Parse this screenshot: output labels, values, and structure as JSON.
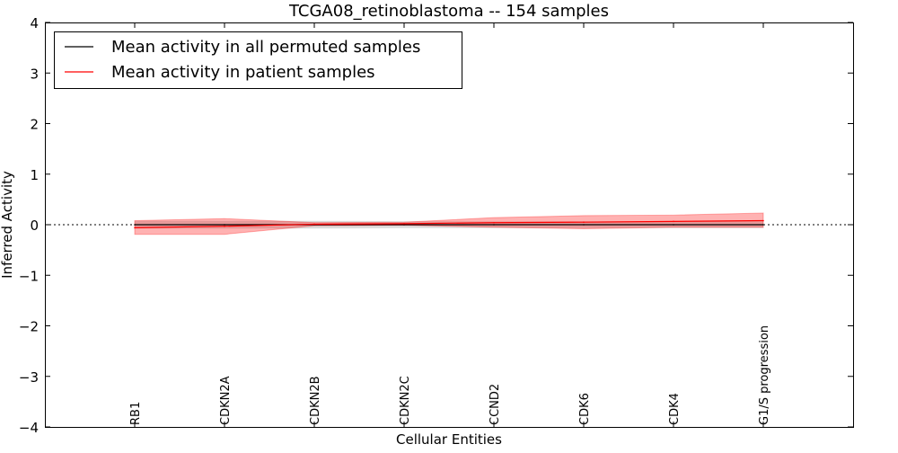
{
  "chart_data": {
    "type": "line",
    "title": "TCGA08_retinoblastoma -- 154 samples",
    "xlabel": "Cellular Entities",
    "ylabel": "Inferred Activity",
    "ylim": [
      -4,
      4
    ],
    "xlim": [
      0,
      9
    ],
    "yticks": [
      4,
      3,
      2,
      1,
      0,
      -1,
      -2,
      -3,
      -4
    ],
    "ytick_labels": [
      "4",
      "3",
      "2",
      "1",
      "0",
      "−1",
      "−2",
      "−3",
      "−4"
    ],
    "categories": [
      "RB1",
      "CDKN2A",
      "CDKN2B",
      "CDKN2C",
      "CCND2",
      "CDK6",
      "CDK4",
      "G1/S progression"
    ],
    "grid": false,
    "legend_position": "top-left",
    "series": [
      {
        "name": "Mean activity in all permuted samples",
        "color": "#000000",
        "values": [
          0,
          0,
          0,
          0,
          0,
          0,
          0,
          0
        ],
        "band_upper": [
          0.07,
          0.07,
          0.07,
          0.06,
          0.06,
          0.06,
          0.06,
          0.06
        ],
        "band_lower": [
          -0.07,
          -0.07,
          -0.07,
          -0.06,
          -0.06,
          -0.06,
          -0.06,
          -0.06
        ],
        "band_color": "#bbbbbb"
      },
      {
        "name": "Mean activity in patient samples",
        "color": "#ff0000",
        "values": [
          -0.06,
          -0.03,
          0.01,
          0.02,
          0.04,
          0.05,
          0.065,
          0.08
        ],
        "band_upper": [
          0.08,
          0.12,
          0.04,
          0.05,
          0.14,
          0.18,
          0.19,
          0.23
        ],
        "band_lower": [
          -0.19,
          -0.19,
          -0.02,
          -0.01,
          -0.05,
          -0.08,
          -0.05,
          -0.05
        ],
        "band_color": "#ff0000"
      }
    ]
  }
}
